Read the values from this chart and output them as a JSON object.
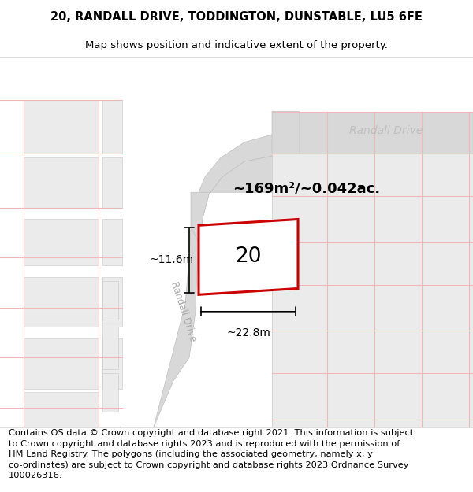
{
  "title_line1": "20, RANDALL DRIVE, TODDINGTON, DUNSTABLE, LU5 6FE",
  "title_line2": "Map shows position and indicative extent of the property.",
  "footer_text": "Contains OS data © Crown copyright and database right 2021. This information is subject\nto Crown copyright and database rights 2023 and is reproduced with the permission of\nHM Land Registry. The polygons (including the associated geometry, namely x, y\nco-ordinates) are subject to Crown copyright and database rights 2023 Ordnance Survey\n100026316.",
  "map_bg": "#f7f7f7",
  "road_color": "#d8d8d8",
  "road_edge": "#c0c0c0",
  "plot_bg": "#ebebeb",
  "plot_edge": "#c8c8c8",
  "stripe_color": "#f0b8b8",
  "stripe_lw": 0.8,
  "highlight_edge": "#cc0000",
  "highlight_lw": 2.2,
  "plot_label": "20",
  "area_label": "~169m²/~0.042ac.",
  "width_label": "~22.8m",
  "height_label": "~11.6m",
  "rd_diag_label": "Randall Drive",
  "rd_horiz_label": "Randall Drive",
  "title_fontsize": 10.5,
  "subtitle_fontsize": 9.5,
  "footer_fontsize": 8.2
}
